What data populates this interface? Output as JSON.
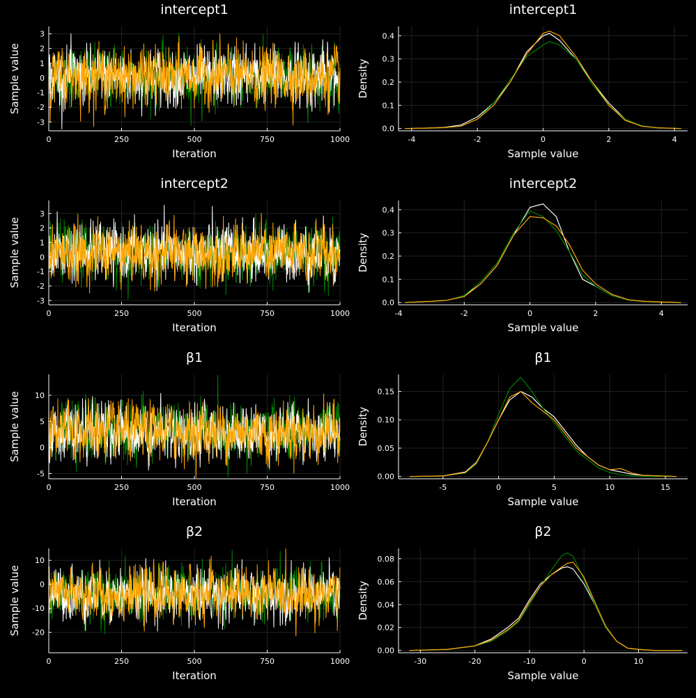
{
  "chart_data": [
    {
      "type": "line",
      "kind": "trace",
      "title": "intercept1",
      "xlabel": "Iteration",
      "ylabel": "Sample value",
      "xlim": [
        0,
        1000
      ],
      "ylim": [
        -3.6,
        3.5
      ],
      "xticks": [
        0,
        250,
        500,
        750,
        1000
      ],
      "yticks": [
        -3,
        -2,
        -1,
        0,
        1,
        2,
        3
      ],
      "chains": {
        "count": 1000,
        "mean": 0.1,
        "sd": 0.95
      },
      "series_colors": [
        "#008000",
        "#ffffff",
        "#ffa500"
      ]
    },
    {
      "type": "line",
      "kind": "density",
      "title": "intercept1",
      "xlabel": "Sample value",
      "ylabel": "Density",
      "xlim": [
        -4.4,
        4.4
      ],
      "ylim": [
        -0.01,
        0.44
      ],
      "xticks": [
        -4,
        -2,
        0,
        2,
        4
      ],
      "yticks": [
        0.0,
        0.1,
        0.2,
        0.3,
        0.4
      ],
      "x": [
        -4.2,
        -3.5,
        -3.0,
        -2.5,
        -2.0,
        -1.5,
        -1.0,
        -0.5,
        0.0,
        0.2,
        0.5,
        1.0,
        1.5,
        2.0,
        2.5,
        3.0,
        3.5,
        4.2
      ],
      "series": [
        {
          "color": "#ffffff",
          "values": [
            0.0,
            0.002,
            0.005,
            0.015,
            0.05,
            0.11,
            0.2,
            0.33,
            0.4,
            0.41,
            0.38,
            0.3,
            0.2,
            0.11,
            0.04,
            0.01,
            0.003,
            0.0
          ]
        },
        {
          "color": "#008000",
          "values": [
            0.0,
            0.002,
            0.004,
            0.01,
            0.04,
            0.11,
            0.21,
            0.31,
            0.36,
            0.375,
            0.36,
            0.3,
            0.19,
            0.1,
            0.04,
            0.012,
            0.003,
            0.0
          ]
        },
        {
          "color": "#ffa500",
          "values": [
            0.0,
            0.002,
            0.004,
            0.01,
            0.04,
            0.1,
            0.2,
            0.32,
            0.41,
            0.42,
            0.4,
            0.31,
            0.2,
            0.1,
            0.035,
            0.01,
            0.003,
            0.0
          ]
        }
      ]
    },
    {
      "type": "line",
      "kind": "trace",
      "title": "intercept2",
      "xlabel": "Iteration",
      "ylabel": "Sample value",
      "xlim": [
        0,
        1000
      ],
      "ylim": [
        -3.3,
        3.9
      ],
      "xticks": [
        0,
        250,
        500,
        750,
        1000
      ],
      "yticks": [
        -3,
        -2,
        -1,
        0,
        1,
        2,
        3
      ],
      "chains": {
        "count": 1000,
        "mean": 0.3,
        "sd": 0.95
      },
      "series_colors": [
        "#008000",
        "#ffffff",
        "#ffa500"
      ]
    },
    {
      "type": "line",
      "kind": "density",
      "title": "intercept2",
      "xlabel": "Sample value",
      "ylabel": "Density",
      "xlim": [
        -4.0,
        4.8
      ],
      "ylim": [
        -0.01,
        0.44
      ],
      "xticks": [
        -4,
        -2,
        0,
        2,
        4
      ],
      "yticks": [
        0.0,
        0.1,
        0.2,
        0.3,
        0.4
      ],
      "x": [
        -3.8,
        -3.0,
        -2.5,
        -2.0,
        -1.5,
        -1.0,
        -0.5,
        0.0,
        0.4,
        0.8,
        1.2,
        1.6,
        2.0,
        2.5,
        3.0,
        3.5,
        4.0,
        4.6
      ],
      "series": [
        {
          "color": "#ffffff",
          "values": [
            0.0,
            0.005,
            0.01,
            0.03,
            0.08,
            0.16,
            0.29,
            0.41,
            0.425,
            0.37,
            0.22,
            0.1,
            0.07,
            0.03,
            0.01,
            0.004,
            0.002,
            0.0
          ]
        },
        {
          "color": "#008000",
          "values": [
            0.0,
            0.005,
            0.01,
            0.03,
            0.09,
            0.17,
            0.3,
            0.395,
            0.37,
            0.31,
            0.22,
            0.12,
            0.07,
            0.03,
            0.01,
            0.004,
            0.001,
            0.0
          ]
        },
        {
          "color": "#ffa500",
          "values": [
            0.0,
            0.005,
            0.01,
            0.025,
            0.08,
            0.16,
            0.29,
            0.37,
            0.365,
            0.33,
            0.25,
            0.14,
            0.08,
            0.035,
            0.012,
            0.005,
            0.002,
            0.0
          ]
        }
      ]
    },
    {
      "type": "line",
      "kind": "trace",
      "title": "β1",
      "xlabel": "Iteration",
      "ylabel": "Sample value",
      "xlim": [
        0,
        1000
      ],
      "ylim": [
        -6,
        14
      ],
      "xticks": [
        0,
        250,
        500,
        750,
        1000
      ],
      "yticks": [
        -5,
        0,
        5,
        10
      ],
      "chains": {
        "count": 1000,
        "mean": 3.0,
        "sd": 2.6
      },
      "series_colors": [
        "#008000",
        "#ffffff",
        "#ffa500"
      ]
    },
    {
      "type": "line",
      "kind": "density",
      "title": "β1",
      "xlabel": "Sample value",
      "ylabel": "Density",
      "xlim": [
        -9,
        17
      ],
      "ylim": [
        -0.004,
        0.18
      ],
      "xticks": [
        -5,
        0,
        5,
        10,
        15
      ],
      "yticks": [
        0.0,
        0.05,
        0.1,
        0.15
      ],
      "x": [
        -8,
        -5,
        -3,
        -2,
        -1,
        0,
        1,
        2,
        3,
        4,
        5,
        6,
        7,
        8,
        9,
        10,
        11,
        12,
        13,
        16
      ],
      "series": [
        {
          "color": "#ffffff",
          "values": [
            0.0,
            0.001,
            0.008,
            0.025,
            0.06,
            0.1,
            0.135,
            0.15,
            0.14,
            0.12,
            0.105,
            0.08,
            0.055,
            0.035,
            0.02,
            0.012,
            0.008,
            0.004,
            0.002,
            0.0
          ]
        },
        {
          "color": "#008000",
          "values": [
            0.0,
            0.001,
            0.006,
            0.022,
            0.06,
            0.11,
            0.155,
            0.175,
            0.15,
            0.12,
            0.095,
            0.07,
            0.045,
            0.03,
            0.015,
            0.007,
            0.003,
            0.001,
            0.0,
            0.0
          ]
        },
        {
          "color": "#ffa500",
          "values": [
            0.0,
            0.001,
            0.007,
            0.024,
            0.06,
            0.1,
            0.14,
            0.15,
            0.13,
            0.115,
            0.1,
            0.075,
            0.05,
            0.035,
            0.02,
            0.012,
            0.014,
            0.006,
            0.002,
            0.0
          ]
        }
      ]
    },
    {
      "type": "line",
      "kind": "trace",
      "title": "β2",
      "xlabel": "Iteration",
      "ylabel": "Sample value",
      "xlim": [
        0,
        1000
      ],
      "ylim": [
        -28.5,
        15
      ],
      "xticks": [
        0,
        250,
        500,
        750,
        1000
      ],
      "yticks": [
        -20,
        -10,
        0,
        10
      ],
      "chains": {
        "count": 1000,
        "mean": -4.0,
        "sd": 5.3
      },
      "series_colors": [
        "#008000",
        "#ffffff",
        "#ffa500"
      ]
    },
    {
      "type": "line",
      "kind": "density",
      "title": "β2",
      "xlabel": "Sample value",
      "ylabel": "Density",
      "xlim": [
        -34,
        19
      ],
      "ylim": [
        -0.002,
        0.089
      ],
      "xticks": [
        -30,
        -20,
        -10,
        0,
        10
      ],
      "yticks": [
        0.0,
        0.02,
        0.04,
        0.06,
        0.08
      ],
      "x": [
        -32,
        -25,
        -20,
        -17,
        -14,
        -12,
        -10,
        -8,
        -6,
        -4,
        -3,
        -2,
        0,
        2,
        4,
        6,
        8,
        10,
        13,
        18
      ],
      "series": [
        {
          "color": "#ffffff",
          "values": [
            0.0,
            0.001,
            0.004,
            0.01,
            0.02,
            0.028,
            0.044,
            0.058,
            0.066,
            0.072,
            0.073,
            0.071,
            0.058,
            0.04,
            0.02,
            0.008,
            0.002,
            0.001,
            0.0,
            0.0
          ]
        },
        {
          "color": "#008000",
          "values": [
            0.0,
            0.001,
            0.004,
            0.008,
            0.017,
            0.025,
            0.04,
            0.056,
            0.07,
            0.083,
            0.085,
            0.082,
            0.062,
            0.04,
            0.02,
            0.008,
            0.002,
            0.001,
            0.0,
            0.0
          ]
        },
        {
          "color": "#ffa500",
          "values": [
            0.0,
            0.001,
            0.004,
            0.009,
            0.018,
            0.026,
            0.042,
            0.056,
            0.066,
            0.073,
            0.076,
            0.077,
            0.064,
            0.042,
            0.021,
            0.008,
            0.002,
            0.001,
            0.0,
            0.0
          ]
        }
      ]
    }
  ]
}
